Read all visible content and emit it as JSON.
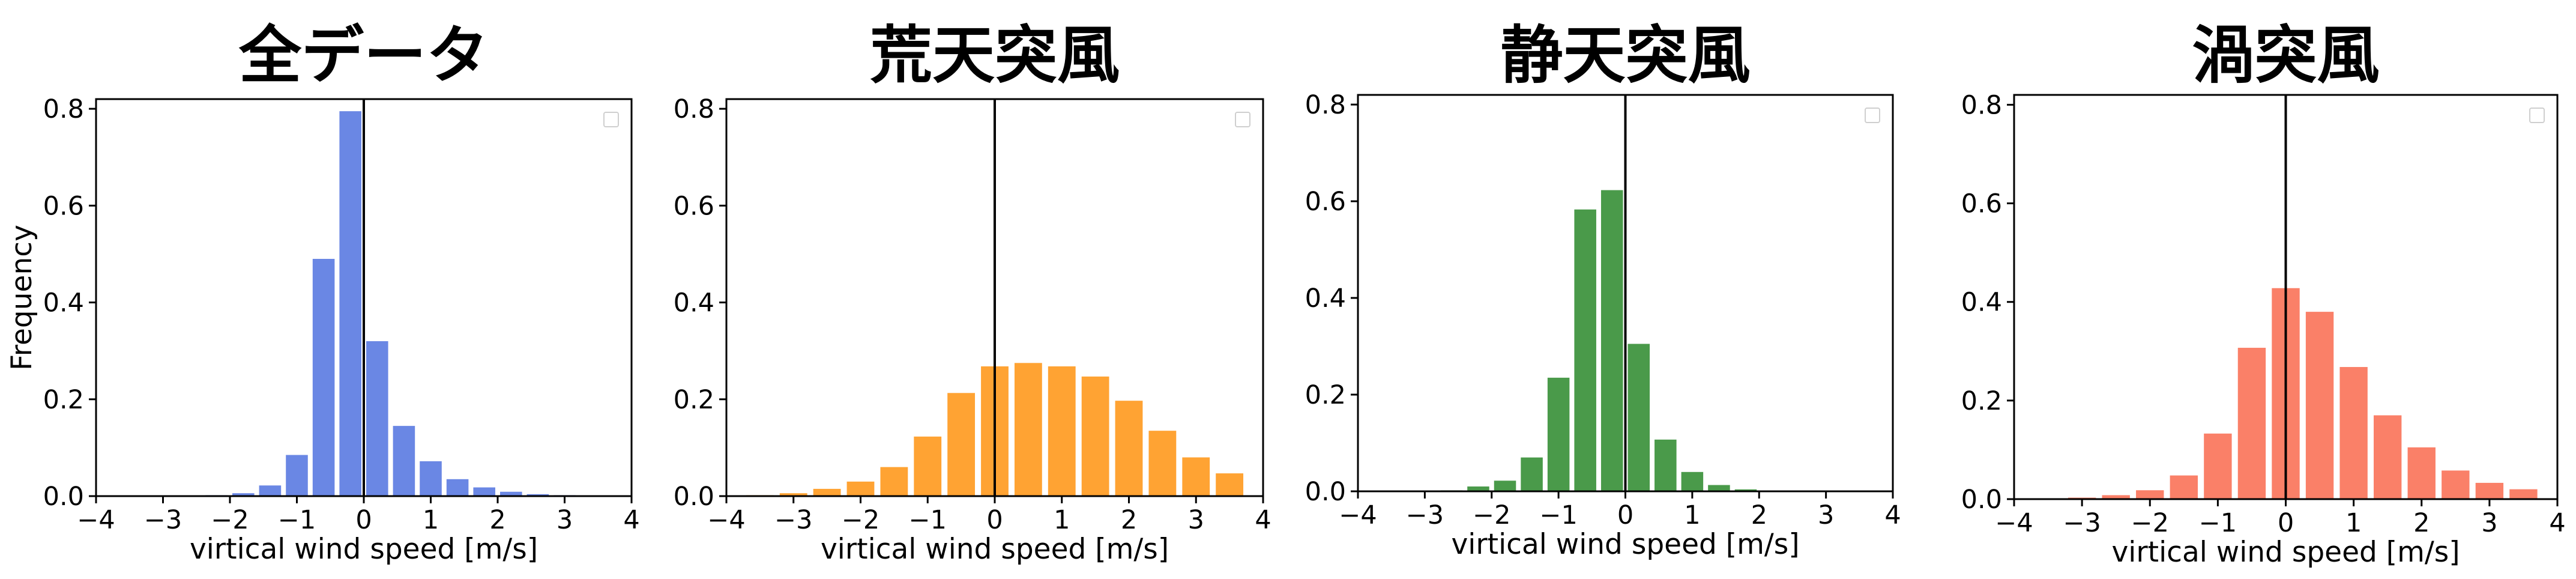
{
  "chart_data": [
    {
      "type": "bar",
      "title": "全データ",
      "xlabel": "virtical wind speed [m/s]",
      "ylabel": "Frequency",
      "color": "#6a87e4",
      "xlim": [
        -4,
        4
      ],
      "ylim": [
        0,
        0.82
      ],
      "xticks": [
        -4,
        -3,
        -2,
        -1,
        0,
        1,
        2,
        3,
        4
      ],
      "xtick_labels": [
        "−4",
        "−3",
        "−2",
        "−1",
        "0",
        "1",
        "2",
        "3",
        "4"
      ],
      "yticks": [
        0.0,
        0.2,
        0.4,
        0.6,
        0.8
      ],
      "ytick_labels": [
        "0.0",
        "0.2",
        "0.4",
        "0.6",
        "0.8"
      ],
      "bin_width": 0.4,
      "x": [
        -3.4,
        -3.0,
        -2.6,
        -2.2,
        -1.8,
        -1.4,
        -1.0,
        -0.6,
        -0.2,
        0.2,
        0.6,
        1.0,
        1.4,
        1.8,
        2.2,
        2.6,
        3.0,
        3.4,
        3.8
      ],
      "values": [
        0.0,
        0.0,
        0.001,
        0.002,
        0.006,
        0.022,
        0.085,
        0.49,
        0.795,
        0.32,
        0.145,
        0.072,
        0.035,
        0.018,
        0.009,
        0.004,
        0.002,
        0.001,
        0.0
      ],
      "vline_x": 0,
      "legend": "top-right (empty)"
    },
    {
      "type": "bar",
      "title": "荒天突風",
      "xlabel": "virtical wind speed [m/s]",
      "ylabel": "",
      "color": "#ffa333",
      "xlim": [
        -4,
        4
      ],
      "ylim": [
        0,
        0.82
      ],
      "xticks": [
        -4,
        -3,
        -2,
        -1,
        0,
        1,
        2,
        3,
        4
      ],
      "xtick_labels": [
        "−4",
        "−3",
        "−2",
        "−1",
        "0",
        "1",
        "2",
        "3",
        "4"
      ],
      "yticks": [
        0.0,
        0.2,
        0.4,
        0.6,
        0.8
      ],
      "ytick_labels": [
        "0.0",
        "0.2",
        "0.4",
        "0.6",
        "0.8"
      ],
      "bin_width": 0.5,
      "x": [
        -3.5,
        -3.0,
        -2.5,
        -2.0,
        -1.5,
        -1.0,
        -0.5,
        0.0,
        0.5,
        1.0,
        1.5,
        2.0,
        2.5,
        3.0,
        3.5,
        4.0
      ],
      "values": [
        0.002,
        0.006,
        0.015,
        0.03,
        0.06,
        0.123,
        0.213,
        0.268,
        0.275,
        0.268,
        0.247,
        0.197,
        0.135,
        0.08,
        0.047,
        0.0
      ],
      "vline_x": 0,
      "legend": "top-right (empty)"
    },
    {
      "type": "bar",
      "title": "静天突風",
      "xlabel": "virtical wind speed [m/s]",
      "ylabel": "",
      "color": "#4a9a4a",
      "xlim": [
        -4,
        4
      ],
      "ylim": [
        0,
        0.82
      ],
      "xticks": [
        -4,
        -3,
        -2,
        -1,
        0,
        1,
        2,
        3,
        4
      ],
      "xtick_labels": [
        "−4",
        "−3",
        "−2",
        "−1",
        "0",
        "1",
        "2",
        "3",
        "4"
      ],
      "yticks": [
        0.0,
        0.2,
        0.4,
        0.6,
        0.8
      ],
      "ytick_labels": [
        "0.0",
        "0.2",
        "0.4",
        "0.6",
        "0.8"
      ],
      "bin_width": 0.4,
      "x": [
        -3.4,
        -3.0,
        -2.6,
        -2.2,
        -1.8,
        -1.4,
        -1.0,
        -0.6,
        -0.2,
        0.2,
        0.6,
        1.0,
        1.4,
        1.8,
        2.2,
        2.6,
        3.0
      ],
      "values": [
        0.0,
        0.001,
        0.002,
        0.01,
        0.022,
        0.07,
        0.235,
        0.583,
        0.623,
        0.305,
        0.107,
        0.04,
        0.013,
        0.004,
        0.001,
        0.0,
        0.0
      ],
      "vline_x": 0,
      "legend": "top-right (empty)"
    },
    {
      "type": "bar",
      "title": "渦突風",
      "xlabel": "virtical wind speed [m/s]",
      "ylabel": "",
      "color": "#fa8068",
      "xlim": [
        -4,
        4
      ],
      "ylim": [
        0,
        0.82
      ],
      "xticks": [
        -4,
        -3,
        -2,
        -1,
        0,
        1,
        2,
        3,
        4
      ],
      "xtick_labels": [
        "−4",
        "−3",
        "−2",
        "−1",
        "0",
        "1",
        "2",
        "3",
        "4"
      ],
      "yticks": [
        0.0,
        0.2,
        0.4,
        0.6,
        0.8
      ],
      "ytick_labels": [
        "0.0",
        "0.2",
        "0.4",
        "0.6",
        "0.8"
      ],
      "bin_width": 0.5,
      "x": [
        -3.0,
        -2.5,
        -2.0,
        -1.5,
        -1.0,
        -0.5,
        0.0,
        0.5,
        1.0,
        1.5,
        2.0,
        2.5,
        3.0,
        3.5,
        4.0
      ],
      "values": [
        0.003,
        0.008,
        0.018,
        0.048,
        0.133,
        0.307,
        0.428,
        0.38,
        0.268,
        0.17,
        0.105,
        0.058,
        0.033,
        0.02,
        0.0
      ],
      "vline_x": 0,
      "legend": "top-right (empty)"
    }
  ]
}
